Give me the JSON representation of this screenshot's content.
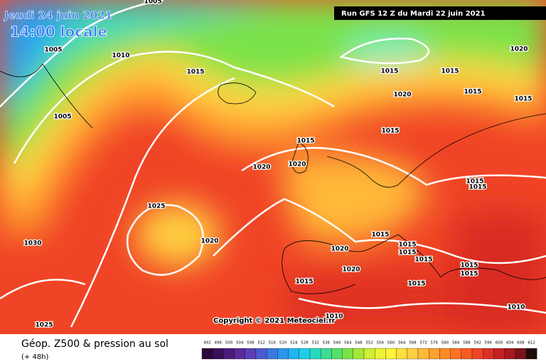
{
  "header": {
    "date": "Jeudi 24 juin 2021",
    "time": "14:00 locale",
    "run": "Run GFS 12 Z du Mardi 22 juin 2021"
  },
  "isobar_labels": [
    "1005",
    "1005",
    "1010",
    "1015",
    "1015",
    "1015",
    "1020",
    "1005",
    "1020",
    "1015",
    "1015",
    "1015",
    "1015",
    "1020",
    "1020",
    "1015",
    "1015",
    "1025",
    "1020",
    "1030",
    "1015",
    "1015",
    "1015",
    "1020",
    "1015",
    "1015",
    "1015",
    "1020",
    "1015",
    "1015",
    "1010",
    "1010",
    "1025"
  ],
  "copyright": "Copyright © 2021 Meteociel.fr",
  "footer": {
    "title": "Géop. Z500 & pression au sol",
    "lead": "(+ 48h)"
  },
  "colorbar": {
    "labels": [
      492,
      496,
      500,
      504,
      508,
      512,
      516,
      520,
      524,
      528,
      532,
      536,
      540,
      544,
      548,
      552,
      556,
      560,
      564,
      568,
      572,
      576,
      580,
      584,
      588,
      592,
      596,
      600,
      604,
      608,
      612
    ],
    "colors": [
      "#2a0a3a",
      "#3b0f5a",
      "#4b1a7a",
      "#5a2a9a",
      "#5b3fb8",
      "#4d5ad0",
      "#3a78e0",
      "#2a96ee",
      "#21b3f2",
      "#20cde8",
      "#2ad8c0",
      "#3ddc92",
      "#55e06a",
      "#7ae248",
      "#a3e83a",
      "#cdee36",
      "#eef234",
      "#fff23a",
      "#ffe040",
      "#ffcf44",
      "#ffb838",
      "#ffa030",
      "#ff8a28",
      "#ff7224",
      "#f85a22",
      "#ee4424",
      "#dc3024",
      "#c42222",
      "#a41a1e",
      "#7a121a",
      "#200a0a"
    ]
  }
}
